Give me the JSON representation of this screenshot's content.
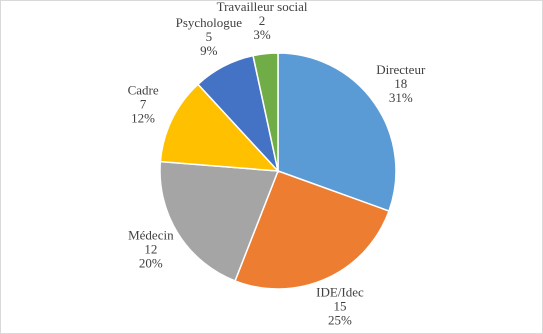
{
  "chart_data": {
    "type": "pie",
    "categories": [
      "Directeur",
      "IDE/Idec",
      "Médecin",
      "Cadre",
      "Psychologue",
      "Travailleur social"
    ],
    "values": [
      18,
      15,
      12,
      7,
      5,
      2
    ],
    "percent_labels": [
      "31%",
      "25%",
      "20%",
      "12%",
      "9%",
      "3%"
    ],
    "colors": [
      "#5b9bd5",
      "#ed7d31",
      "#a5a5a5",
      "#ffc000",
      "#4472c4",
      "#70ad47"
    ]
  }
}
